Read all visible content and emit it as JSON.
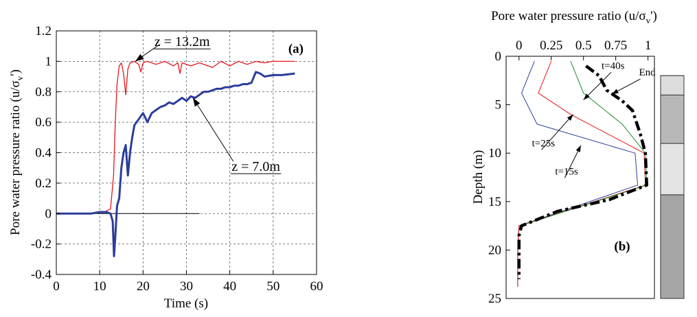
{
  "chart_data": [
    {
      "id": "a",
      "type": "line",
      "panel_label": "(a)",
      "xlabel": "Time (s)",
      "ylabel_main": "Pore water pressure ratio (u/σ",
      "ylabel_sub": "v",
      "ylabel_tail": "')",
      "xlim": [
        0,
        60
      ],
      "ylim": [
        -0.4,
        1.2
      ],
      "x_ticks": [
        0,
        10,
        20,
        30,
        40,
        50,
        60
      ],
      "x_tick_labels": [
        "0",
        "10",
        "20",
        "30",
        "40",
        "50",
        "60"
      ],
      "y_ticks": [
        -0.4,
        -0.2,
        0,
        0.2,
        0.4,
        0.6,
        0.8,
        1,
        1.2
      ],
      "y_tick_labels": [
        "-0.4",
        "-0.2",
        "0",
        "0.2",
        "0.4",
        "0.6",
        "0.8",
        "1",
        "1.2"
      ],
      "grid": true,
      "series": [
        {
          "name": "z = 13.2m",
          "color": "#e8141a",
          "x": [
            0,
            8,
            11,
            12.5,
            13.2,
            13.6,
            14,
            14.5,
            15,
            15.5,
            16,
            16.5,
            17,
            18,
            19,
            19.5,
            20,
            21,
            23,
            25,
            27,
            28,
            28.5,
            29,
            31,
            33,
            36,
            38,
            40,
            42,
            44,
            46,
            48,
            50,
            52,
            55
          ],
          "y": [
            0,
            0,
            0.01,
            0.03,
            0.25,
            0.6,
            0.85,
            0.97,
            0.99,
            0.92,
            0.78,
            0.95,
            0.99,
            1.0,
            0.98,
            0.93,
            0.99,
            1.0,
            0.98,
            1.0,
            0.97,
            0.99,
            0.92,
            0.99,
            0.97,
            0.99,
            0.96,
            1.0,
            0.97,
            1.0,
            0.98,
            1.0,
            0.99,
            1.0,
            1.0,
            1.0
          ]
        },
        {
          "name": "z = 7.0m",
          "color": "#2a3d9a",
          "x": [
            0,
            8,
            10,
            11.5,
            12.5,
            13,
            13.3,
            13.6,
            14,
            14.5,
            15,
            15.5,
            16,
            16.5,
            17,
            17.5,
            18,
            19,
            20,
            21,
            22,
            23,
            24,
            25,
            26,
            27,
            28,
            29,
            30,
            31,
            32,
            33,
            34,
            35,
            36,
            37,
            38,
            39,
            40,
            41,
            42,
            43,
            44,
            45,
            46,
            47,
            48,
            50,
            52,
            55
          ],
          "y": [
            0,
            0,
            0.01,
            0.01,
            0.0,
            -0.05,
            -0.28,
            -0.15,
            0.05,
            0.1,
            0.3,
            0.4,
            0.45,
            0.25,
            0.4,
            0.5,
            0.58,
            0.62,
            0.66,
            0.6,
            0.66,
            0.68,
            0.7,
            0.71,
            0.73,
            0.72,
            0.74,
            0.76,
            0.74,
            0.77,
            0.76,
            0.78,
            0.8,
            0.8,
            0.81,
            0.82,
            0.82,
            0.83,
            0.83,
            0.84,
            0.84,
            0.85,
            0.85,
            0.86,
            0.93,
            0.92,
            0.9,
            0.91,
            0.91,
            0.92
          ]
        }
      ],
      "annotations": [
        {
          "text": "z = 13.2m",
          "x": 29,
          "y": 1.1,
          "arrow_to": [
            18.2,
            1.0
          ]
        },
        {
          "text": "z = 7.0m",
          "x": 46,
          "y": 0.28,
          "arrow_to": [
            31.5,
            0.76
          ]
        }
      ]
    },
    {
      "id": "b",
      "type": "line",
      "panel_label": "(b)",
      "title_main": "Pore water pressure ratio (u/σ",
      "title_sub": "v",
      "title_tail": "')",
      "ylabel": "Depth (m)",
      "xlim": [
        -0.1,
        1.05
      ],
      "ylim": [
        0,
        25
      ],
      "y_inverted": true,
      "x_axis_position": "top",
      "x_ticks": [
        0,
        0.25,
        0.5,
        0.75,
        1
      ],
      "x_tick_labels": [
        "0",
        "0.25",
        "0.5",
        "0.75",
        "1"
      ],
      "y_ticks": [
        0,
        5,
        10,
        15,
        20,
        25
      ],
      "y_tick_labels": [
        "0",
        "5",
        "10",
        "15",
        "20",
        "25"
      ],
      "grid": false,
      "series": [
        {
          "name": "t=15s",
          "color": "#2a3d9a",
          "style": "solid",
          "x": [
            0.12,
            0.02,
            0.14,
            0.9,
            0.92,
            0.0,
            -0.01,
            -0.01
          ],
          "y": [
            0.5,
            3.8,
            7.0,
            10.0,
            13.3,
            17.5,
            20.0,
            23.8
          ]
        },
        {
          "name": "t=25s",
          "color": "#e8141a",
          "style": "solid",
          "x": [
            0.25,
            0.15,
            0.4,
            0.97,
            0.98,
            0.0,
            -0.01,
            -0.01
          ],
          "y": [
            0.5,
            3.8,
            6.0,
            10.0,
            13.3,
            17.5,
            20.0,
            23.8
          ]
        },
        {
          "name": "t=40s",
          "color": "#1a8a2a",
          "style": "solid",
          "x": [
            0.4,
            0.5,
            0.8,
            0.98,
            0.99,
            0.01
          ],
          "y": [
            0.5,
            3.8,
            7.0,
            10.0,
            13.3,
            17.5
          ]
        },
        {
          "name": "End",
          "color": "#000000",
          "style": "dashdot",
          "x": [
            0.52,
            0.62,
            0.68,
            0.8,
            0.88,
            0.94,
            0.98,
            0.99,
            0.7,
            0.3,
            0.02,
            0.0,
            0.0,
            0.0
          ],
          "y": [
            1.0,
            2.0,
            3.5,
            4.6,
            5.6,
            8.0,
            10.0,
            13.3,
            14.8,
            16.0,
            17.5,
            18.5,
            21.0,
            23.0
          ]
        }
      ],
      "annotations": [
        {
          "text": "t=40s",
          "x": 0.64,
          "y": 1.3,
          "arrow_to": [
            0.5,
            4.5
          ]
        },
        {
          "text": "End",
          "x": 0.93,
          "y": 2.0,
          "arrow_to": [
            0.72,
            3.9
          ]
        },
        {
          "text": "t=25s",
          "x": 0.1,
          "y": 9.3,
          "arrow_to": [
            0.42,
            6.0
          ]
        },
        {
          "text": "t=15s",
          "x": 0.28,
          "y": 12.2,
          "arrow_to": [
            0.48,
            9.2
          ]
        }
      ],
      "soil_column": {
        "depths": [
          0,
          1.5,
          3.0,
          7.0,
          10.0,
          13.3,
          17.5,
          23.5
        ],
        "fills": [
          "#dedede",
          "#b8b8b8",
          "#e4e4e4",
          "#a5a5a5"
        ]
      }
    }
  ]
}
